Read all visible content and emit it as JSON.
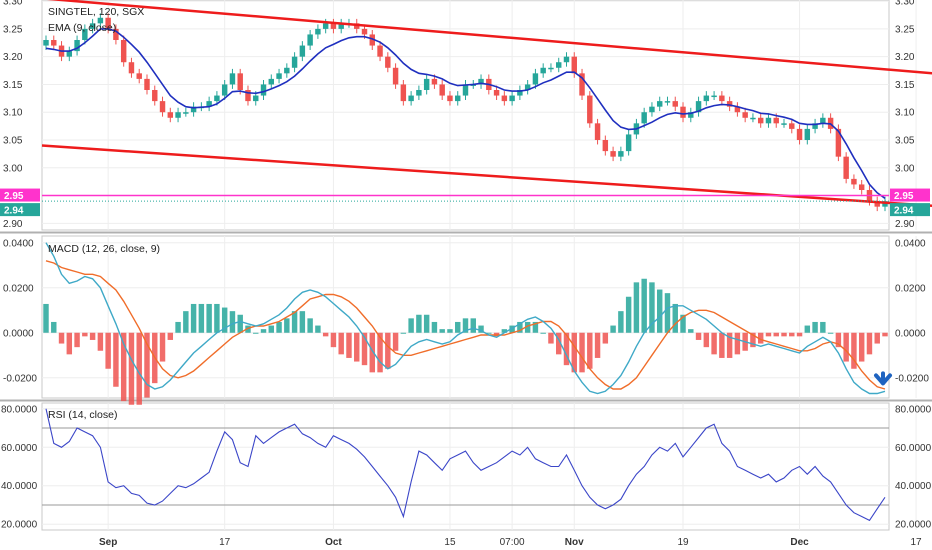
{
  "chart_data": {
    "type": "candlestick",
    "colors": {
      "up": "#26a69a",
      "down": "#ef5350",
      "ema": "#1f2fbf",
      "trendline": "#ee1c1c",
      "hline": "#ff33cc",
      "price_label_bg": "#ff33cc",
      "last_price_bg": "#26a69a",
      "macd_line": "#3fa9c7",
      "signal_line": "#f06d2a",
      "hist_up": "#26a69a",
      "hist_down": "#ef5350",
      "rsi_line": "#3b46c8",
      "arrow": "#1e63c0"
    },
    "x_ticks": [
      "Sep",
      "17",
      "Oct",
      "15",
      "07:00",
      "Nov",
      "19",
      "Dec",
      "17"
    ],
    "x_tick_bars": [
      8,
      23,
      37,
      52,
      60,
      68,
      82,
      97,
      112
    ],
    "price_pane": {
      "title": "SINGTEL, 120, SGX",
      "indicator_title": "EMA (9, close)",
      "y_ticks": [
        "3.30",
        "3.25",
        "3.20",
        "3.15",
        "3.10",
        "3.05",
        "3.00",
        "2.95",
        "2.94",
        "2.90"
      ],
      "y_tick_values": [
        3.3,
        3.25,
        3.2,
        3.15,
        3.1,
        3.05,
        3.0,
        2.9
      ],
      "ylim": [
        2.888,
        3.302
      ],
      "hline_value": 2.95,
      "hline_label": "2.95",
      "last_price_label": "2.94",
      "last_price_value": 2.94,
      "closes": [
        3.23,
        3.22,
        3.2,
        3.21,
        3.23,
        3.25,
        3.26,
        3.27,
        3.25,
        3.23,
        3.19,
        3.17,
        3.16,
        3.14,
        3.12,
        3.1,
        3.09,
        3.1,
        3.1,
        3.11,
        3.11,
        3.12,
        3.13,
        3.15,
        3.17,
        3.14,
        3.12,
        3.13,
        3.15,
        3.16,
        3.17,
        3.18,
        3.2,
        3.22,
        3.24,
        3.25,
        3.26,
        3.25,
        3.26,
        3.26,
        3.25,
        3.24,
        3.22,
        3.2,
        3.18,
        3.15,
        3.12,
        3.13,
        3.14,
        3.16,
        3.15,
        3.13,
        3.12,
        3.13,
        3.15,
        3.15,
        3.16,
        3.14,
        3.13,
        3.12,
        3.13,
        3.14,
        3.15,
        3.17,
        3.18,
        3.18,
        3.19,
        3.2,
        3.17,
        3.13,
        3.08,
        3.05,
        3.03,
        3.02,
        3.03,
        3.06,
        3.08,
        3.1,
        3.11,
        3.12,
        3.12,
        3.11,
        3.09,
        3.1,
        3.12,
        3.13,
        3.13,
        3.12,
        3.11,
        3.1,
        3.09,
        3.09,
        3.08,
        3.09,
        3.08,
        3.08,
        3.07,
        3.05,
        3.07,
        3.08,
        3.09,
        3.07,
        3.02,
        2.98,
        2.97,
        2.96,
        2.94,
        2.93,
        2.94
      ],
      "ema": [
        3.215,
        3.213,
        3.21,
        3.21,
        3.215,
        3.225,
        3.237,
        3.25,
        3.25,
        3.246,
        3.235,
        3.222,
        3.208,
        3.19,
        3.17,
        3.15,
        3.13,
        3.118,
        3.11,
        3.108,
        3.109,
        3.11,
        3.115,
        3.125,
        3.137,
        3.138,
        3.135,
        3.134,
        3.137,
        3.142,
        3.148,
        3.155,
        3.165,
        3.178,
        3.192,
        3.205,
        3.216,
        3.222,
        3.229,
        3.234,
        3.236,
        3.236,
        3.232,
        3.226,
        3.216,
        3.203,
        3.188,
        3.177,
        3.17,
        3.168,
        3.165,
        3.16,
        3.152,
        3.148,
        3.149,
        3.15,
        3.152,
        3.15,
        3.146,
        3.14,
        3.138,
        3.138,
        3.14,
        3.146,
        3.153,
        3.158,
        3.165,
        3.172,
        3.172,
        3.162,
        3.144,
        3.124,
        3.104,
        3.085,
        3.073,
        3.069,
        3.07,
        3.076,
        3.082,
        3.09,
        3.096,
        3.099,
        3.097,
        3.098,
        3.102,
        3.108,
        3.112,
        3.114,
        3.113,
        3.11,
        3.106,
        3.103,
        3.098,
        3.097,
        3.094,
        3.091,
        3.087,
        3.08,
        3.078,
        3.078,
        3.08,
        3.079,
        3.066,
        3.043,
        3.018,
        2.995,
        2.97,
        2.955,
        2.945
      ],
      "trendline_upper": [
        [
          0,
          3.305
        ],
        [
          121,
          3.162
        ]
      ],
      "trendline_lower": [
        [
          0,
          3.04
        ],
        [
          121,
          2.925
        ]
      ]
    },
    "macd_pane": {
      "title": "MACD (12, 26, close, 9)",
      "y_ticks": [
        "0.0400",
        "0.0200",
        "0.0000",
        "-0.0200"
      ],
      "y_tick_values": [
        0.04,
        0.02,
        0.0,
        -0.02
      ],
      "ylim": [
        -0.029,
        0.043
      ],
      "macd": [
        0.04,
        0.034,
        0.026,
        0.022,
        0.023,
        0.025,
        0.024,
        0.02,
        0.012,
        0.004,
        -0.005,
        -0.012,
        -0.018,
        -0.023,
        -0.025,
        -0.024,
        -0.021,
        -0.017,
        -0.013,
        -0.009,
        -0.006,
        -0.003,
        0.0,
        0.002,
        0.004,
        0.005,
        0.004,
        0.003,
        0.004,
        0.006,
        0.008,
        0.011,
        0.015,
        0.018,
        0.019,
        0.018,
        0.016,
        0.013,
        0.01,
        0.007,
        0.003,
        -0.002,
        -0.008,
        -0.013,
        -0.016,
        -0.014,
        -0.01,
        -0.006,
        -0.004,
        -0.003,
        -0.004,
        -0.005,
        -0.004,
        -0.001,
        0.001,
        0.002,
        0.001,
        -0.001,
        -0.002,
        0.0,
        0.002,
        0.004,
        0.006,
        0.007,
        0.005,
        0.002,
        -0.003,
        -0.01,
        -0.017,
        -0.022,
        -0.026,
        -0.027,
        -0.026,
        -0.023,
        -0.019,
        -0.013,
        -0.006,
        0.0,
        0.004,
        0.007,
        0.011,
        0.012,
        0.012,
        0.01,
        0.008,
        0.006,
        0.003,
        0.0,
        -0.002,
        -0.003,
        -0.004,
        -0.005,
        -0.006,
        -0.005,
        -0.006,
        -0.007,
        -0.008,
        -0.009,
        -0.006,
        -0.004,
        -0.002,
        -0.004,
        -0.009,
        -0.016,
        -0.022,
        -0.025,
        -0.027,
        -0.027,
        -0.026
      ],
      "signal": [
        0.032,
        0.031,
        0.029,
        0.028,
        0.027,
        0.026,
        0.026,
        0.025,
        0.022,
        0.019,
        0.014,
        0.008,
        0.002,
        -0.005,
        -0.011,
        -0.016,
        -0.019,
        -0.02,
        -0.019,
        -0.017,
        -0.014,
        -0.011,
        -0.008,
        -0.005,
        -0.002,
        0.0,
        0.002,
        0.003,
        0.003,
        0.004,
        0.005,
        0.007,
        0.009,
        0.012,
        0.015,
        0.016,
        0.017,
        0.017,
        0.016,
        0.014,
        0.011,
        0.007,
        0.003,
        -0.002,
        -0.006,
        -0.009,
        -0.01,
        -0.01,
        -0.009,
        -0.008,
        -0.007,
        -0.006,
        -0.005,
        -0.004,
        -0.003,
        -0.002,
        -0.001,
        -0.001,
        -0.001,
        -0.001,
        0.0,
        0.001,
        0.003,
        0.004,
        0.005,
        0.005,
        0.003,
        -0.001,
        -0.006,
        -0.011,
        -0.016,
        -0.02,
        -0.023,
        -0.025,
        -0.025,
        -0.023,
        -0.02,
        -0.015,
        -0.01,
        -0.005,
        0.0,
        0.004,
        0.007,
        0.009,
        0.01,
        0.01,
        0.009,
        0.007,
        0.005,
        0.003,
        0.001,
        -0.001,
        -0.003,
        -0.004,
        -0.005,
        -0.006,
        -0.007,
        -0.008,
        -0.008,
        -0.007,
        -0.005,
        -0.004,
        -0.005,
        -0.008,
        -0.012,
        -0.017,
        -0.021,
        -0.024,
        -0.025
      ]
    },
    "rsi_pane": {
      "title": "RSI (14, close)",
      "y_ticks": [
        "80.0000",
        "60.0000",
        "40.0000",
        "20.0000"
      ],
      "y_tick_values": [
        80,
        60,
        40,
        20
      ],
      "ylim": [
        17,
        83
      ],
      "band_levels": [
        70,
        30
      ],
      "rsi": [
        80,
        62,
        60,
        63,
        70,
        68,
        66,
        60,
        42,
        39,
        40,
        36,
        35,
        31,
        30,
        32,
        36,
        40,
        39,
        41,
        44,
        47,
        58,
        68,
        64,
        52,
        50,
        66,
        62,
        65,
        68,
        70,
        72,
        67,
        65,
        62,
        60,
        66,
        64,
        62,
        59,
        55,
        50,
        45,
        40,
        34,
        24,
        42,
        58,
        56,
        52,
        48,
        54,
        56,
        58,
        52,
        48,
        50,
        52,
        55,
        58,
        56,
        60,
        54,
        52,
        50,
        50,
        56,
        48,
        40,
        34,
        30,
        28,
        30,
        33,
        40,
        46,
        50,
        56,
        60,
        58,
        62,
        55,
        60,
        65,
        70,
        72,
        62,
        58,
        50,
        48,
        46,
        44,
        46,
        42,
        44,
        48,
        50,
        46,
        50,
        45,
        42,
        36,
        30,
        26,
        24,
        22,
        28,
        34
      ]
    }
  }
}
